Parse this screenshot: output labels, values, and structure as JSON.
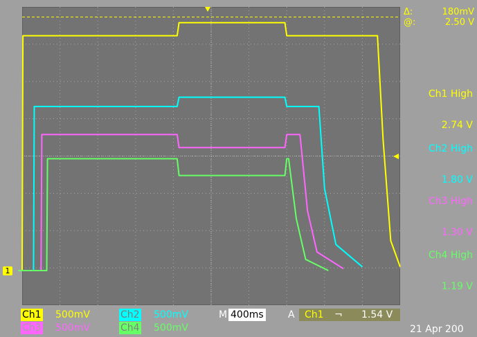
{
  "cursor": {
    "delta_label": "Δ:",
    "delta_value": "180mV",
    "at_label": "@:",
    "at_value": "2.50 V"
  },
  "measurements": [
    {
      "title": "Ch1 High",
      "value": "2.74 V",
      "color": "#ffff00"
    },
    {
      "title": "Ch2 High",
      "value": "1.80 V",
      "color": "#00ffff"
    },
    {
      "title": "Ch3 High",
      "value": "1.30 V",
      "color": "#ff66ff"
    },
    {
      "title": "Ch4 High",
      "value": "1.19 V",
      "color": "#66ff66"
    }
  ],
  "channels": [
    {
      "name": "Ch1",
      "scale": "500mV",
      "color": "#ffff00"
    },
    {
      "name": "Ch2",
      "scale": "500mV",
      "color": "#00ffff"
    },
    {
      "name": "Ch3",
      "scale": "500mV",
      "color": "#ff66ff"
    },
    {
      "name": "Ch4",
      "scale": "500mV",
      "color": "#66ff66"
    }
  ],
  "timebase": {
    "label": "M",
    "value": "400ms"
  },
  "trigger": {
    "mode": "A",
    "source": "Ch1",
    "slope_symbol": "⌐",
    "level": "1.54 V"
  },
  "ground_marker": "1",
  "date": "21 Apr 200",
  "chart_data": {
    "type": "line",
    "xlabel": "",
    "ylabel": "",
    "grid": true,
    "divisions": {
      "x": 10,
      "y": 8
    },
    "units": {
      "x": "div",
      "y": "div"
    },
    "cursor_level_div": 6.8,
    "series": [
      {
        "name": "Ch1",
        "color": "#ffff00",
        "x": [
          -0.1,
          0.0,
          0.02,
          4.1,
          4.15,
          6.95,
          7.0,
          9.4,
          9.55,
          9.75,
          10.0
        ],
        "y": [
          0.0,
          0.0,
          6.3,
          6.3,
          6.65,
          6.65,
          6.3,
          6.3,
          3.5,
          0.8,
          0.1
        ]
      },
      {
        "name": "Ch2",
        "color": "#00ffff",
        "x": [
          -0.1,
          0.3,
          0.32,
          4.1,
          4.15,
          6.95,
          7.0,
          7.85,
          8.0,
          8.3,
          9.0
        ],
        "y": [
          0.0,
          0.0,
          4.4,
          4.4,
          4.65,
          4.65,
          4.4,
          4.4,
          2.2,
          0.7,
          0.1
        ]
      },
      {
        "name": "Ch3",
        "color": "#ff66ff",
        "x": [
          -0.1,
          0.5,
          0.52,
          4.1,
          4.15,
          6.95,
          7.0,
          7.35,
          7.55,
          7.8,
          8.5
        ],
        "y": [
          0.0,
          0.0,
          3.65,
          3.65,
          3.3,
          3.3,
          3.65,
          3.65,
          1.6,
          0.5,
          0.05
        ]
      },
      {
        "name": "Ch4",
        "color": "#66ff66",
        "x": [
          -0.1,
          0.65,
          0.67,
          4.1,
          4.15,
          6.95,
          7.0,
          7.05,
          7.25,
          7.5,
          8.1
        ],
        "y": [
          0.0,
          0.0,
          3.0,
          3.0,
          2.55,
          2.55,
          3.0,
          3.0,
          1.4,
          0.3,
          0.0
        ]
      }
    ]
  }
}
